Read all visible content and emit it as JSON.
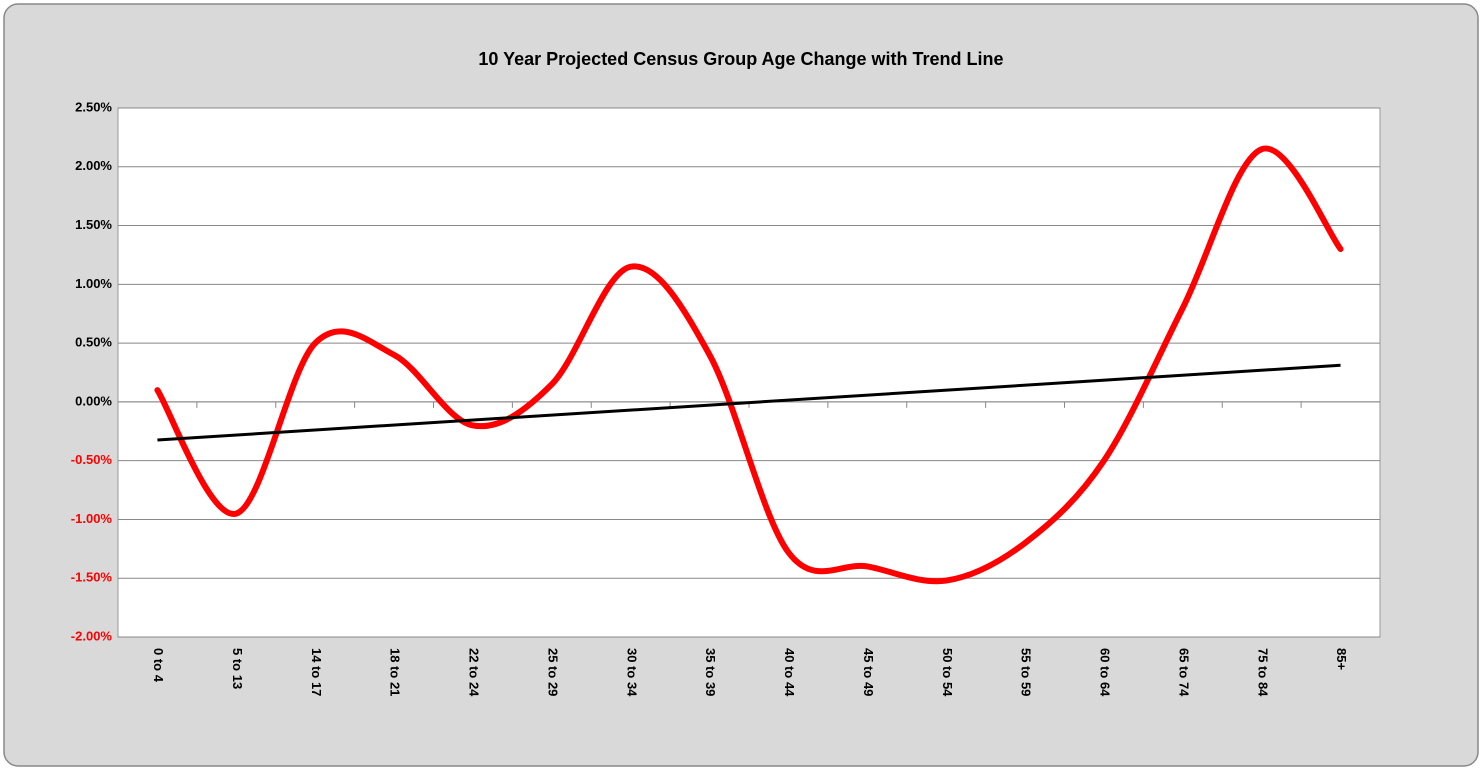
{
  "chart_data": {
    "type": "line",
    "title": "10 Year Projected Census Group Age Change with Trend Line",
    "categories": [
      "0 to 4",
      "5 to 13",
      "14 to 17",
      "18 to 21",
      "22 to 24",
      "25 to 29",
      "30 to 34",
      "35 to 39",
      "40 to 44",
      "45 to 49",
      "50 to 54",
      "55 to 59",
      "60 to 64",
      "65 to 74",
      "75 to 84",
      "85+"
    ],
    "values": [
      0.1,
      -0.95,
      0.5,
      0.4,
      -0.2,
      0.15,
      1.15,
      0.4,
      -1.28,
      -1.4,
      -1.52,
      -1.2,
      -0.5,
      0.8,
      2.15,
      1.3
    ],
    "color": "#ff0000",
    "smooth": true,
    "trendline": {
      "type": "linear",
      "color": "#000000"
    },
    "ylim": [
      -2,
      2.5
    ],
    "yticks": [
      {
        "value": -2,
        "label": "-2.00%"
      },
      {
        "value": -1.5,
        "label": "-1.50%"
      },
      {
        "value": -1,
        "label": "-1.00%"
      },
      {
        "value": -0.5,
        "label": "-0.50%"
      },
      {
        "value": 0,
        "label": "0.00%"
      },
      {
        "value": 0.5,
        "label": "0.50%"
      },
      {
        "value": 1,
        "label": "1.00%"
      },
      {
        "value": 1.5,
        "label": "1.50%"
      },
      {
        "value": 2,
        "label": "2.00%"
      },
      {
        "value": 2.5,
        "label": "2.50%"
      }
    ],
    "negative_tick_color": "#ff0000",
    "grid": true
  }
}
